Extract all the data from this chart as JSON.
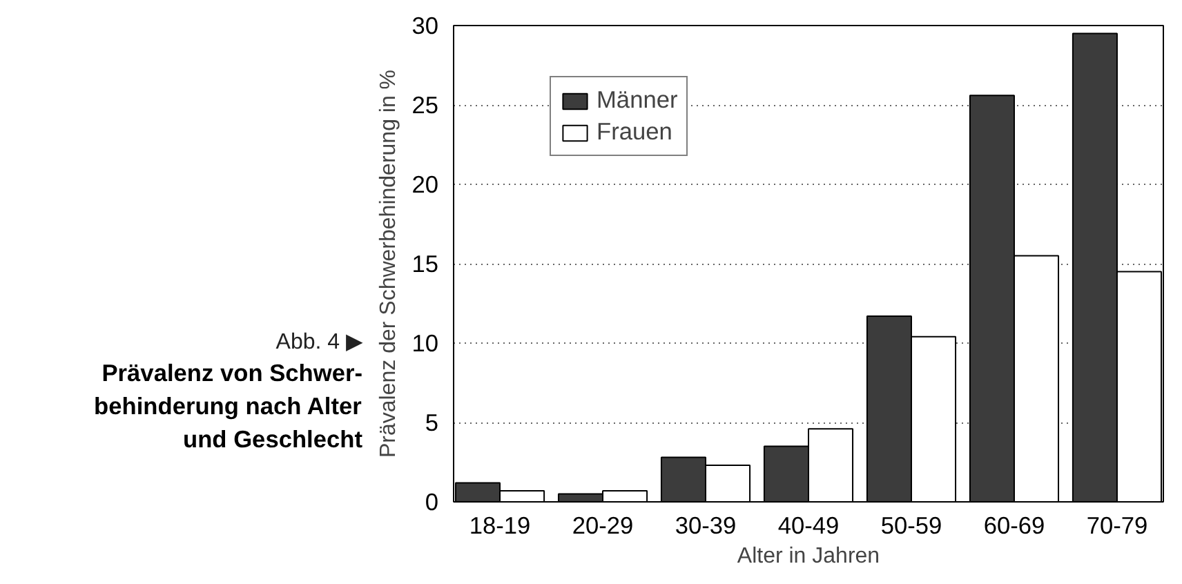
{
  "chart_data": {
    "type": "bar",
    "title": "Prävalenz von Schwer-\nbehinderung nach Alter\nund Geschlecht",
    "xlabel": "Alter in Jahren",
    "ylabel": "Prävalenz der Schwerbehinderung in %",
    "annotations": [
      "Abb. 4 ▶"
    ],
    "categories": [
      "18-19",
      "20-29",
      "30-39",
      "40-49",
      "50-59",
      "60-69",
      "70-79"
    ],
    "series": [
      {
        "name": "Männer",
        "color": "#3c3c3c",
        "values": [
          1.2,
          0.5,
          2.8,
          3.5,
          11.7,
          25.6,
          29.5
        ]
      },
      {
        "name": "Frauen",
        "color": "#ffffff",
        "values": [
          0.7,
          0.7,
          2.3,
          4.6,
          10.4,
          15.5,
          14.5
        ]
      }
    ],
    "ylim": [
      0,
      30
    ],
    "yticks": [
      0,
      5,
      10,
      15,
      20,
      25,
      30
    ],
    "grid": "y",
    "legend": "top left"
  }
}
